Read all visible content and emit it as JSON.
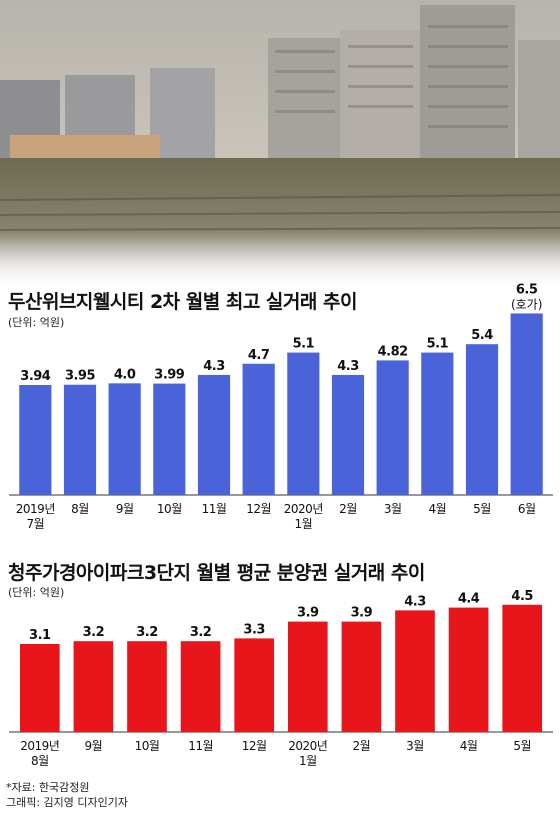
{
  "chart_data": [
    {
      "type": "bar",
      "title": "두산위브지웰시티 2차 월별 최고 실거래 추이",
      "unit_note": "(단위: 억원)",
      "color": "#4a63d9",
      "categories": [
        [
          "2019년",
          "7월"
        ],
        [
          "8월"
        ],
        [
          "9월"
        ],
        [
          "10월"
        ],
        [
          "11월"
        ],
        [
          "12월"
        ],
        [
          "2020년",
          "1월"
        ],
        [
          "2월"
        ],
        [
          "3월"
        ],
        [
          "4월"
        ],
        [
          "5월"
        ],
        [
          "6월"
        ]
      ],
      "values": [
        3.94,
        3.95,
        4.0,
        3.99,
        4.3,
        4.7,
        5.1,
        4.3,
        4.82,
        5.1,
        5.4,
        6.5
      ],
      "value_labels": [
        "3.94",
        "3.95",
        "4.0",
        "3.99",
        "4.3",
        "4.7",
        "5.1",
        "4.3",
        "4.82",
        "5.1",
        "5.4",
        "6.5"
      ],
      "annotation": {
        "index": 11,
        "text": "(호가)"
      }
    },
    {
      "type": "bar",
      "title": "청주가경아이파크3단지 월별 평균 분양권 실거래 추이",
      "unit_note": "(단위: 억원)",
      "color": "#e8151b",
      "categories": [
        [
          "2019년",
          "8월"
        ],
        [
          "9월"
        ],
        [
          "10월"
        ],
        [
          "11월"
        ],
        [
          "12월"
        ],
        [
          "2020년",
          "1월"
        ],
        [
          "2월"
        ],
        [
          "3월"
        ],
        [
          "4월"
        ],
        [
          "5월"
        ]
      ],
      "values": [
        3.1,
        3.2,
        3.2,
        3.2,
        3.3,
        3.9,
        3.9,
        4.3,
        4.4,
        4.5
      ],
      "value_labels": [
        "3.1",
        "3.2",
        "3.2",
        "3.2",
        "3.3",
        "3.9",
        "3.9",
        "4.3",
        "4.4",
        "4.5"
      ]
    }
  ],
  "footer": {
    "source": "*자료: 한국감정원",
    "credit": "그래픽: 김지영 디자인기자"
  },
  "colors": {
    "axis": "#333333",
    "photo_sky": "#c7c2b8"
  }
}
